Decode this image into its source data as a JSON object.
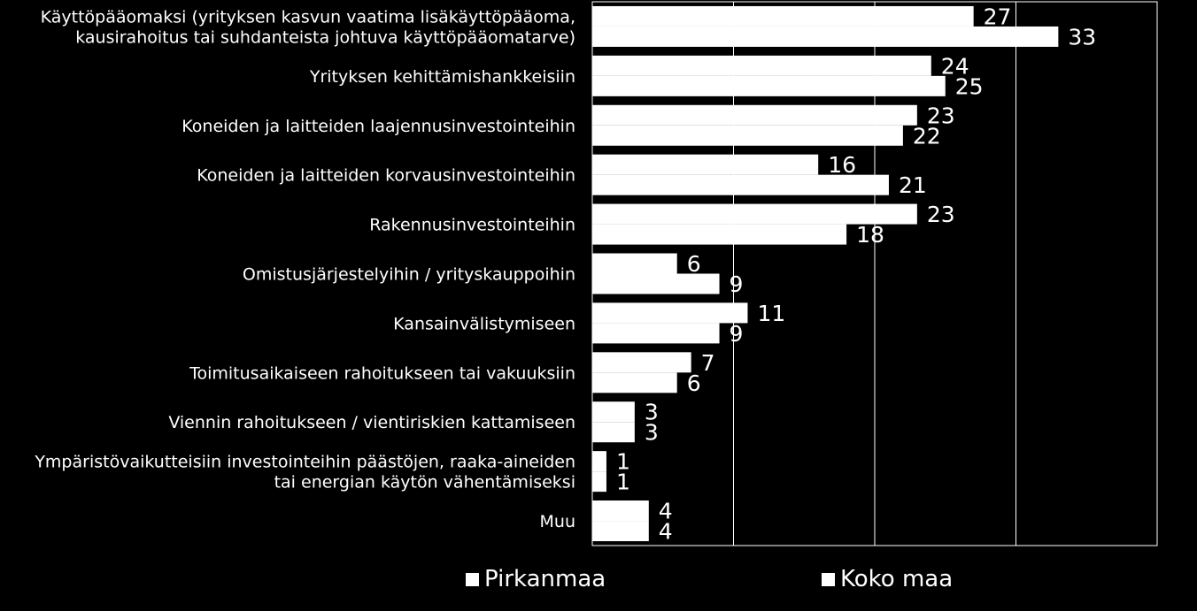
{
  "chart_data": {
    "type": "bar",
    "orientation": "horizontal",
    "categories": [
      [
        "Käyttöpääomaksi (yrityksen kasvun vaatima lisäkäyttöpääoma,",
        "kausirahoitus tai suhdanteista johtuva käyttöpääomatarve)"
      ],
      [
        "Yrityksen kehittämishankkeisiin"
      ],
      [
        "Koneiden ja laitteiden laajennusinvestointeihin"
      ],
      [
        "Koneiden ja laitteiden korvausinvestointeihin"
      ],
      [
        "Rakennusinvestointeihin"
      ],
      [
        "Omistusjärjestelyihin / yrityskauppoihin"
      ],
      [
        "Kansainvälistymiseen"
      ],
      [
        "Toimitusaikaiseen rahoitukseen tai vakuuksiin"
      ],
      [
        "Viennin rahoitukseen / vientiriskien kattamiseen"
      ],
      [
        "Ympäristövaikutteisiin investointeihin päästöjen, raaka-aineiden",
        "tai energian käytön vähentämiseksi"
      ],
      [
        "Muu"
      ]
    ],
    "series": [
      {
        "name": "Pirkanmaa",
        "values": [
          27,
          24,
          23,
          16,
          23,
          6,
          11,
          7,
          3,
          1,
          4
        ]
      },
      {
        "name": "Koko maa",
        "values": [
          33,
          25,
          22,
          21,
          18,
          9,
          9,
          6,
          3,
          1,
          4
        ]
      }
    ],
    "xlim": [
      0,
      40
    ],
    "grid": true,
    "legend_position": "bottom",
    "colors": {
      "background": "#000000",
      "bars": "#ffffff",
      "text": "#ffffff",
      "grid": "#ffffff"
    }
  },
  "legend": {
    "items": [
      "Pirkanmaa",
      "Koko maa"
    ]
  }
}
